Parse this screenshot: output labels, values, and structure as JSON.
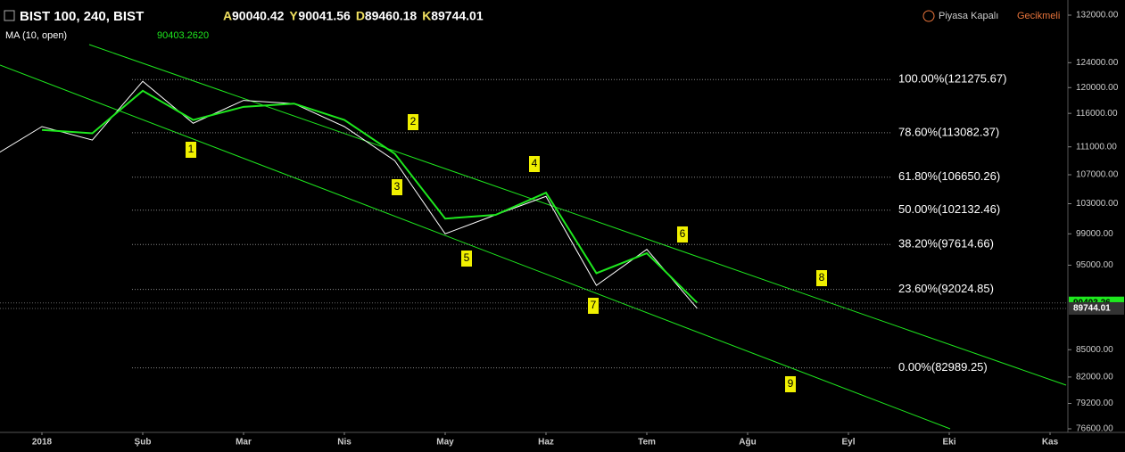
{
  "chart_data": {
    "type": "line",
    "symbol": "BIST 100, 240, BIST",
    "ohlc": [
      {
        "key": "A",
        "value": 90040.42
      },
      {
        "key": "Y",
        "value": 90041.56
      },
      {
        "key": "D",
        "value": 89460.18
      },
      {
        "key": "K",
        "value": 89744.01
      }
    ],
    "indicator": {
      "name": "MA (10, open)",
      "value": "90403.2620"
    },
    "status": [
      "Piyasa Kapalı",
      "Gecikmeli"
    ],
    "categories": [
      null,
      "2018",
      null,
      "Şub",
      null,
      "Mar",
      null,
      "Nis",
      null,
      "May",
      null,
      "Haz",
      null,
      "Tem",
      null,
      "Ağu",
      null,
      "Eyl",
      null,
      "Eki",
      null,
      "Kas"
    ],
    "series": [
      {
        "color": "#ffffff",
        "values": [
          109500,
          114000,
          112000,
          121000,
          114500,
          118000,
          117500,
          114000,
          109000,
          99000,
          101500,
          104000,
          92500,
          97000,
          89744.01,
          null,
          null,
          null,
          null,
          null,
          null,
          null
        ]
      },
      {
        "color": "#1ee81e",
        "values": [
          null,
          113500,
          113000,
          119500,
          115000,
          117000,
          117500,
          115000,
          110000,
          101000,
          101500,
          104500,
          94000,
          96500,
          90403.26,
          null,
          null,
          null,
          null,
          null,
          null,
          null
        ]
      }
    ],
    "log_scale": true,
    "ylim": [
      76240,
      133870
    ],
    "yticks": [
      {
        "value": 132000,
        "label": "132000.00"
      },
      {
        "value": 124000,
        "label": "124000.00"
      },
      {
        "value": 120000,
        "label": "120000.00"
      },
      {
        "value": 116000,
        "label": "116000.00"
      },
      {
        "value": 111000,
        "label": "111000.00"
      },
      {
        "value": 107000,
        "label": "107000.00"
      },
      {
        "value": 103000,
        "label": "103000.00"
      },
      {
        "value": 99000,
        "label": "99000.00"
      },
      {
        "value": 95000,
        "label": "95000.00"
      },
      {
        "value": 85000,
        "label": "85000.00"
      },
      {
        "value": 82000,
        "label": "82000.00"
      },
      {
        "value": 79200,
        "label": "79200.00"
      },
      {
        "value": 76600,
        "label": "76600.00"
      }
    ],
    "fib_levels": [
      {
        "value": 121275.67,
        "label": "100.00%(121275.67)"
      },
      {
        "value": 113082.37,
        "label": "78.60%(113082.37)"
      },
      {
        "value": 106650.26,
        "label": "61.80%(106650.26)"
      },
      {
        "value": 102132.46,
        "label": "50.00%(102132.46)"
      },
      {
        "value": 97614.66,
        "label": "38.20%(97614.66)"
      },
      {
        "value": 92024.85,
        "label": "23.60%(92024.85)"
      },
      {
        "value": 82989.25,
        "label": "0.00%(82989.25)"
      }
    ],
    "price_markers": [
      {
        "value": 90403.26,
        "color": "#1ee81e"
      },
      {
        "value": 89744.01,
        "color": "#333333"
      }
    ],
    "annotations": [
      "1",
      "2",
      "3",
      "4",
      "5",
      "6",
      "7",
      "8",
      "9"
    ]
  }
}
